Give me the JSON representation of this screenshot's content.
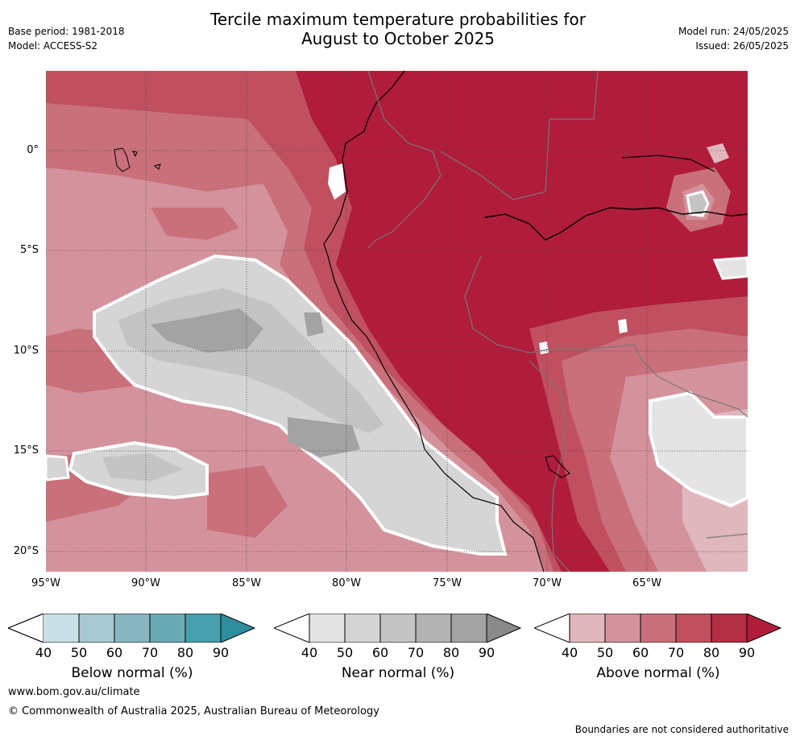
{
  "title_line1": "Tercile maximum temperature probabilities for",
  "title_line2": "August to October 2025",
  "base_period": "Base period: 1981-2018",
  "model": "Model: ACCESS-S2",
  "model_run": "Model run: 24/05/2025",
  "issued": "Issued: 26/05/2025",
  "lat_ticks": [
    "0°",
    "5°S",
    "10°S",
    "15°S",
    "20°S"
  ],
  "lon_ticks": [
    "95°W",
    "90°W",
    "85°W",
    "80°W",
    "75°W",
    "70°W",
    "65°W"
  ],
  "colorbars": [
    {
      "label": "Below normal (%)",
      "ticks": [
        "40",
        "50",
        "60",
        "70",
        "80",
        "90"
      ],
      "colors": [
        "#ffffff",
        "#c9e1e6",
        "#a7c8cf",
        "#88b7c1",
        "#6aabb6",
        "#47a0ad",
        "#2f8e9e"
      ]
    },
    {
      "label": "Near normal (%)",
      "ticks": [
        "40",
        "50",
        "60",
        "70",
        "80",
        "90"
      ],
      "colors": [
        "#ffffff",
        "#e4e4e4",
        "#d5d5d5",
        "#c4c4c4",
        "#b3b3b3",
        "#a3a3a3",
        "#8a8a8a"
      ]
    },
    {
      "label": "Above normal (%)",
      "ticks": [
        "40",
        "50",
        "60",
        "70",
        "80",
        "90"
      ],
      "colors": [
        "#ffffff",
        "#e0b7bc",
        "#d4939c",
        "#c9707b",
        "#c0505f",
        "#b22e42",
        "#b01c3a"
      ]
    }
  ],
  "website": "www.bom.gov.au/climate",
  "copyright": "© Commonwealth of Australia 2025, Australian Bureau of Meteorology",
  "disclaimer": "Boundaries are not considered authoritative"
}
